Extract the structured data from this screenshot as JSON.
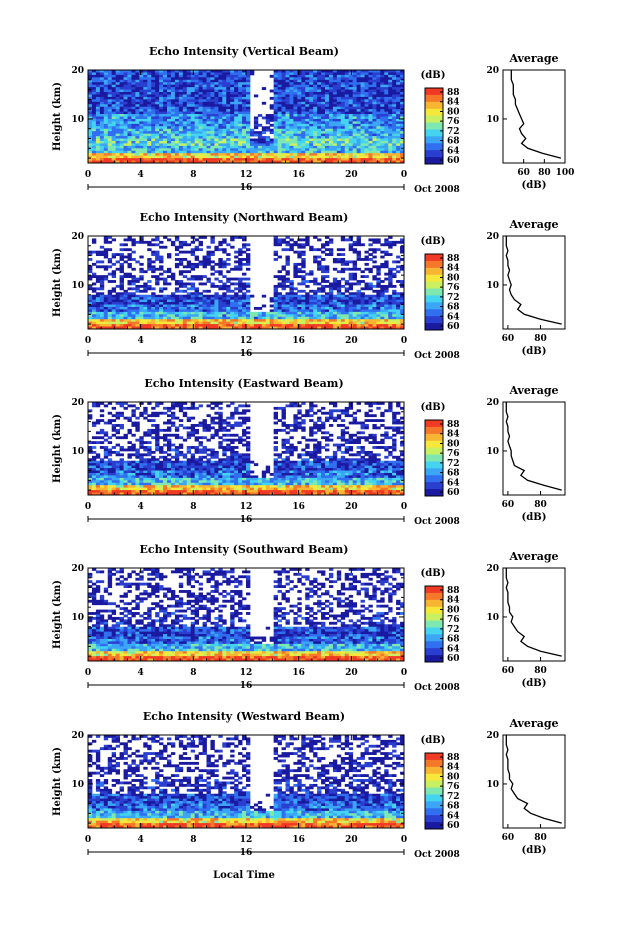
{
  "colorbar": {
    "unit": "(dB)",
    "ticks": [
      "88",
      "84",
      "80",
      "76",
      "72",
      "68",
      "64",
      "60"
    ],
    "colors": [
      "#1a1aa0",
      "#2a3fd0",
      "#2f6ff0",
      "#3aa6f5",
      "#45d4f0",
      "#7fe8b0",
      "#c8f060",
      "#f5e83a",
      "#f7b531",
      "#f5782a",
      "#f03a24"
    ]
  },
  "x_ticks": [
    "0",
    "4",
    "8",
    "12",
    "16",
    "20",
    "0"
  ],
  "day_label": "16",
  "date_label": "Oct 2008",
  "x_axis_title": "Local Time",
  "panels": [
    {
      "title": "Echo Intensity (Vertical Beam)",
      "ylabel": "Height (km)",
      "avg_title": "Average",
      "avg_xlabel": "(dB)",
      "avg_xticks": [
        "60",
        "80",
        "100"
      ],
      "y_ticks": [
        "20",
        "10"
      ]
    },
    {
      "title": "Echo Intensity (Northward Beam)",
      "ylabel": "Height (km)",
      "avg_title": "Average",
      "avg_xlabel": "(dB)",
      "avg_xticks": [
        "60",
        "80"
      ],
      "y_ticks": [
        "20",
        "10"
      ]
    },
    {
      "title": "Echo Intensity (Eastward Beam)",
      "ylabel": "Height (km)",
      "avg_title": "Average",
      "avg_xlabel": "(dB)",
      "avg_xticks": [
        "60",
        "80"
      ],
      "y_ticks": [
        "20",
        "10"
      ]
    },
    {
      "title": "Echo Intensity (Southward Beam)",
      "ylabel": "Height (km)",
      "avg_title": "Average",
      "avg_xlabel": "(dB)",
      "avg_xticks": [
        "60",
        "80"
      ],
      "y_ticks": [
        "20",
        "10"
      ]
    },
    {
      "title": "Echo Intensity (Westward Beam)",
      "ylabel": "Height (km)",
      "avg_title": "Average",
      "avg_xlabel": "(dB)",
      "avg_xticks": [
        "60",
        "80"
      ],
      "y_ticks": [
        "20",
        "10"
      ]
    }
  ],
  "chart_data": [
    {
      "type": "heatmap",
      "title": "Echo Intensity (Vertical Beam)",
      "xlabel": "Local Time",
      "ylabel": "Height (km)",
      "xlim": [
        0,
        24
      ],
      "ylim": [
        1,
        20
      ],
      "clim": [
        60,
        88
      ],
      "colorbar_label": "(dB)",
      "average_profile": {
        "title": "Average",
        "xlabel": "(dB)",
        "xlim": [
          40,
          100
        ],
        "heights": [
          2,
          3,
          4,
          5,
          6,
          7,
          8,
          9,
          10,
          11,
          12,
          13,
          14,
          15,
          16,
          17,
          18,
          19,
          20
        ],
        "values": [
          96,
          78,
          64,
          58,
          62,
          58,
          56,
          60,
          58,
          56,
          54,
          52,
          52,
          50,
          50,
          50,
          48,
          48,
          48
        ]
      }
    },
    {
      "type": "heatmap",
      "title": "Echo Intensity (Northward Beam)",
      "xlabel": "Local Time",
      "ylabel": "Height (km)",
      "xlim": [
        0,
        24
      ],
      "ylim": [
        1,
        20
      ],
      "clim": [
        60,
        88
      ],
      "colorbar_label": "(dB)",
      "average_profile": {
        "title": "Average",
        "xlabel": "(dB)",
        "xlim": [
          57,
          95
        ],
        "heights": [
          2,
          3,
          4,
          5,
          6,
          7,
          8,
          9,
          10,
          11,
          12,
          13,
          14,
          15,
          16,
          17,
          18,
          19,
          20
        ],
        "values": [
          93,
          80,
          70,
          66,
          68,
          64,
          62,
          61,
          62,
          61,
          60,
          61,
          60,
          60,
          59,
          60,
          59,
          59,
          59
        ]
      }
    },
    {
      "type": "heatmap",
      "title": "Echo Intensity (Eastward Beam)",
      "xlabel": "Local Time",
      "ylabel": "Height (km)",
      "xlim": [
        0,
        24
      ],
      "ylim": [
        1,
        20
      ],
      "clim": [
        60,
        88
      ],
      "colorbar_label": "(dB)",
      "average_profile": {
        "title": "Average",
        "xlabel": "(dB)",
        "xlim": [
          57,
          95
        ],
        "heights": [
          2,
          3,
          4,
          5,
          6,
          7,
          8,
          9,
          10,
          11,
          12,
          13,
          14,
          15,
          16,
          17,
          18,
          19,
          20
        ],
        "values": [
          93,
          82,
          72,
          68,
          70,
          64,
          63,
          62,
          62,
          61,
          60,
          61,
          60,
          60,
          59,
          60,
          59,
          59,
          59
        ]
      }
    },
    {
      "type": "heatmap",
      "title": "Echo Intensity (Southward Beam)",
      "xlabel": "Local Time",
      "ylabel": "Height (km)",
      "xlim": [
        0,
        24
      ],
      "ylim": [
        1,
        20
      ],
      "clim": [
        60,
        88
      ],
      "colorbar_label": "(dB)",
      "average_profile": {
        "title": "Average",
        "xlabel": "(dB)",
        "xlim": [
          57,
          95
        ],
        "heights": [
          2,
          3,
          4,
          5,
          6,
          7,
          8,
          9,
          10,
          11,
          12,
          13,
          14,
          15,
          16,
          17,
          18,
          19,
          20
        ],
        "values": [
          93,
          80,
          72,
          68,
          70,
          66,
          64,
          62,
          63,
          61,
          61,
          60,
          60,
          60,
          59,
          60,
          59,
          59,
          59
        ]
      }
    },
    {
      "type": "heatmap",
      "title": "Echo Intensity (Westward Beam)",
      "xlabel": "Local Time",
      "ylabel": "Height (km)",
      "xlim": [
        0,
        24
      ],
      "ylim": [
        1,
        20
      ],
      "clim": [
        60,
        88
      ],
      "colorbar_label": "(dB)",
      "average_profile": {
        "title": "Average",
        "xlabel": "(dB)",
        "xlim": [
          57,
          95
        ],
        "heights": [
          2,
          3,
          4,
          5,
          6,
          7,
          8,
          9,
          10,
          11,
          12,
          13,
          14,
          15,
          16,
          17,
          18,
          19,
          20
        ],
        "values": [
          93,
          82,
          74,
          70,
          72,
          66,
          64,
          62,
          63,
          61,
          61,
          60,
          60,
          60,
          59,
          60,
          59,
          59,
          59
        ]
      }
    }
  ]
}
